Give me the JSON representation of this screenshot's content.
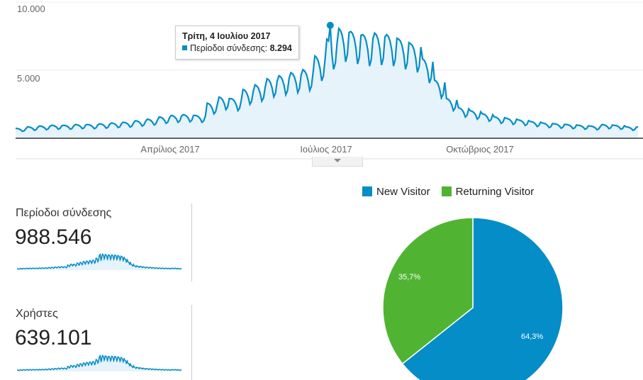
{
  "chart_data": [
    {
      "type": "area",
      "title": "",
      "series_name": "Περίοδοι σύνδεσης",
      "period": "2017, daily (weekly means with weekday oscillation)",
      "weekly_values": [
        650,
        750,
        800,
        850,
        850,
        900,
        900,
        950,
        1000,
        1050,
        1150,
        1250,
        1400,
        1500,
        1550,
        1500,
        2300,
        2700,
        2600,
        3200,
        3500,
        3900,
        4100,
        4300,
        4500,
        5400,
        6500,
        7200,
        7000,
        6800,
        6900,
        6800,
        6500,
        6200,
        5200,
        3800,
        2600,
        2000,
        1800,
        1600,
        1400,
        1300,
        1200,
        1100,
        1000,
        950,
        900,
        850,
        800,
        900,
        850,
        750
      ],
      "ylim": [
        0,
        10000
      ],
      "y_ticks": [
        "5.000",
        "10.000"
      ],
      "x_ticks": [
        "Απρίλιος 2017",
        "Ιούλιος 2017",
        "Οκτώβριος 2017"
      ],
      "color": "#058dc7",
      "tooltip": {
        "date": "Τρίτη, 4 Ιουλίου 2017",
        "label": "Περίοδοι σύνδεσης:",
        "value": "8.294",
        "peak_value": 8294
      }
    },
    {
      "type": "pie",
      "legend": "top",
      "slices": [
        {
          "name": "New Visitor",
          "value": 64.3,
          "label": "64,3%",
          "color": "#058dc7"
        },
        {
          "name": "Returning Visitor",
          "value": 35.7,
          "label": "35,7%",
          "color": "#50b432"
        }
      ]
    }
  ],
  "metrics": [
    {
      "label": "Περίοδοι σύνδεσης",
      "value": "988.546"
    },
    {
      "label": "Χρήστες",
      "value": "639.101"
    }
  ]
}
